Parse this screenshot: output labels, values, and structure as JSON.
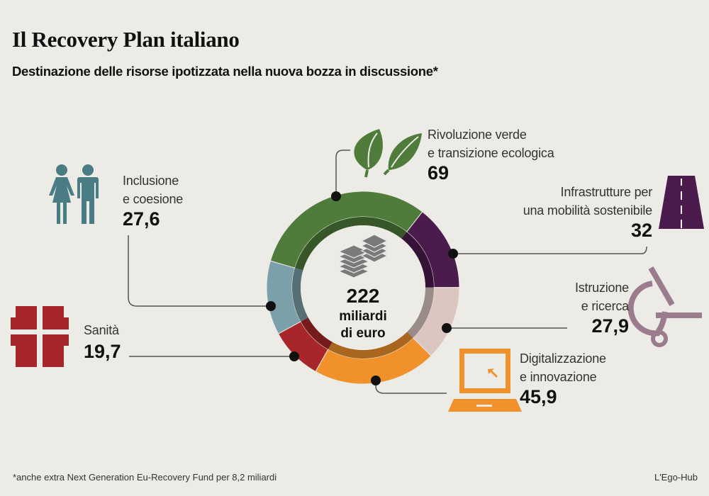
{
  "title": "Il Recovery Plan italiano",
  "subtitle": "Destinazione delle risorse ipotizzata nella nuova bozza in discussione*",
  "footnote": "*anche extra Next Generation Eu-Recovery Fund per 8,2 miliardi",
  "credit": "L'Ego-Hub",
  "center": {
    "total": "222",
    "unit_line1": "miliardi",
    "unit_line2": "di euro",
    "icon": "money-stack-icon"
  },
  "chart_data": {
    "type": "pie",
    "subtype": "donut",
    "unit": "miliardi di euro",
    "total": 222,
    "slices": [
      {
        "label_line1": "Infrastrutture per",
        "label_line2": "una mobilità sostenibile",
        "value": 32,
        "value_label": "32",
        "color": "#4b1b4d",
        "icon": "road-icon"
      },
      {
        "label_line1": "Istruzione",
        "label_line2": "e ricerca",
        "value": 27.9,
        "value_label": "27,9",
        "color": "#dbc6c2",
        "icon": "microscope-icon"
      },
      {
        "label_line1": "Digitalizzazione",
        "label_line2": "e innovazione",
        "value": 45.9,
        "value_label": "45,9",
        "color": "#f0912c",
        "icon": "laptop-icon"
      },
      {
        "label_line1": "Sanità",
        "label_line2": "",
        "value": 19.7,
        "value_label": "19,7",
        "color": "#a7262a",
        "icon": "medical-cross-icon"
      },
      {
        "label_line1": "Inclusione",
        "label_line2": "e coesione",
        "value": 27.6,
        "value_label": "27,6",
        "color": "#7ba0a9",
        "icon": "people-icon"
      },
      {
        "label_line1": "Rivoluzione verde",
        "label_line2": "e transizione ecologica",
        "value": 69,
        "value_label": "69",
        "color": "#4f7c3b",
        "icon": "leaves-icon"
      }
    ]
  }
}
